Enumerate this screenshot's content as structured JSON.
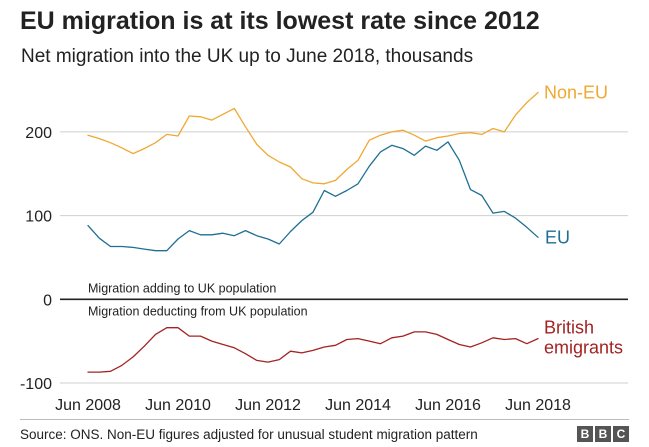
{
  "title": "EU migration is at its lowest rate since 2012",
  "subtitle": "Net migration into the UK up to June 2018, thousands",
  "source": "Source: ONS. Non-EU figures adjusted for unusual student migration pattern",
  "logo": {
    "letters": [
      "B",
      "B",
      "C"
    ]
  },
  "chart_data": {
    "type": "line",
    "title": "EU migration is at its lowest rate since 2012",
    "subtitle": "Net migration into the UK up to June 2018, thousands",
    "xlabel": "",
    "ylabel": "",
    "xlim": [
      2008.5,
      2018.5
    ],
    "ylim": [
      -100,
      250
    ],
    "yticks": [
      -100,
      0,
      100,
      200
    ],
    "xticks": [
      {
        "value": 2008.5,
        "label": "Jun 2008"
      },
      {
        "value": 2010.5,
        "label": "Jun 2010"
      },
      {
        "value": 2012.5,
        "label": "Jun 2012"
      },
      {
        "value": 2014.5,
        "label": "Jun 2014"
      },
      {
        "value": 2016.5,
        "label": "Jun 2016"
      },
      {
        "value": 2018.5,
        "label": "Jun 2018"
      }
    ],
    "grid": true,
    "annotations": {
      "above_zero": "Migration adding to UK population",
      "below_zero": "Migration deducting from UK population"
    },
    "series": [
      {
        "name": "Non-EU",
        "color": "#f0a832",
        "x": [
          2008.5,
          2008.75,
          2009,
          2009.25,
          2009.5,
          2009.75,
          2010,
          2010.25,
          2010.5,
          2010.75,
          2011,
          2011.25,
          2011.5,
          2011.75,
          2012,
          2012.25,
          2012.5,
          2012.75,
          2013,
          2013.25,
          2013.5,
          2013.75,
          2014,
          2014.25,
          2014.5,
          2014.75,
          2015,
          2015.25,
          2015.5,
          2015.75,
          2016,
          2016.25,
          2016.5,
          2016.75,
          2017,
          2017.25,
          2017.5,
          2017.75,
          2018,
          2018.25,
          2018.5
        ],
        "y": [
          196,
          192,
          187,
          181,
          174,
          180,
          187,
          197,
          195,
          219,
          218,
          214,
          221,
          228,
          206,
          185,
          172,
          164,
          158,
          144,
          139,
          138,
          142,
          155,
          166,
          190,
          196,
          200,
          202,
          196,
          189,
          193,
          195,
          198,
          199,
          197,
          204,
          200,
          220,
          235,
          247
        ]
      },
      {
        "name": "EU",
        "color": "#1e6f93",
        "x": [
          2008.5,
          2008.75,
          2009,
          2009.25,
          2009.5,
          2009.75,
          2010,
          2010.25,
          2010.5,
          2010.75,
          2011,
          2011.25,
          2011.5,
          2011.75,
          2012,
          2012.25,
          2012.5,
          2012.75,
          2013,
          2013.25,
          2013.5,
          2013.75,
          2014,
          2014.25,
          2014.5,
          2014.75,
          2015,
          2015.25,
          2015.5,
          2015.75,
          2016,
          2016.25,
          2016.5,
          2016.75,
          2017,
          2017.25,
          2017.5,
          2017.75,
          2018,
          2018.25,
          2018.5
        ],
        "y": [
          88,
          73,
          63,
          63,
          62,
          60,
          58,
          58,
          72,
          82,
          77,
          77,
          79,
          76,
          82,
          76,
          72,
          66,
          81,
          94,
          104,
          130,
          123,
          130,
          138,
          159,
          176,
          184,
          180,
          172,
          183,
          178,
          188,
          166,
          131,
          124,
          103,
          105,
          97,
          86,
          74
        ]
      },
      {
        "name": "British emigrants",
        "color": "#a32323",
        "x": [
          2008.5,
          2008.75,
          2009,
          2009.25,
          2009.5,
          2009.75,
          2010,
          2010.25,
          2010.5,
          2010.75,
          2011,
          2011.25,
          2011.5,
          2011.75,
          2012,
          2012.25,
          2012.5,
          2012.75,
          2013,
          2013.25,
          2013.5,
          2013.75,
          2014,
          2014.25,
          2014.5,
          2014.75,
          2015,
          2015.25,
          2015.5,
          2015.75,
          2016,
          2016.25,
          2016.5,
          2016.75,
          2017,
          2017.25,
          2017.5,
          2017.75,
          2018,
          2018.25,
          2018.5
        ],
        "y": [
          -87,
          -87,
          -86,
          -79,
          -69,
          -56,
          -42,
          -34,
          -34,
          -44,
          -44,
          -50,
          -54,
          -58,
          -65,
          -73,
          -75,
          -72,
          -62,
          -64,
          -61,
          -57,
          -55,
          -48,
          -47,
          -50,
          -53,
          -46,
          -44,
          -39,
          -39,
          -42,
          -48,
          -54,
          -57,
          -52,
          -46,
          -48,
          -47,
          -53,
          -47
        ]
      }
    ],
    "series_labels": {
      "non_eu": "Non-EU",
      "eu": "EU",
      "british_line1": "British",
      "british_line2": "emigrants"
    }
  }
}
